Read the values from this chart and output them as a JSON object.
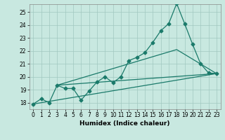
{
  "xlabel": "Humidex (Indice chaleur)",
  "bg_color": "#c8e8e0",
  "line_color": "#1a7a6a",
  "grid_color": "#a0c8c0",
  "xlim": [
    -0.5,
    23.5
  ],
  "ylim": [
    17.5,
    25.6
  ],
  "yticks": [
    18,
    19,
    20,
    21,
    22,
    23,
    24,
    25
  ],
  "xticks": [
    0,
    1,
    2,
    3,
    4,
    5,
    6,
    7,
    8,
    9,
    10,
    11,
    12,
    13,
    14,
    15,
    16,
    17,
    18,
    19,
    20,
    21,
    22,
    23
  ],
  "line1_x": [
    0,
    1,
    2,
    3,
    4,
    5,
    6,
    7,
    8,
    9,
    10,
    11,
    12,
    13,
    14,
    15,
    16,
    17,
    18,
    19,
    20,
    21,
    22,
    23
  ],
  "line1_y": [
    17.9,
    18.3,
    18.0,
    19.35,
    19.1,
    19.1,
    18.2,
    18.9,
    19.6,
    20.0,
    19.55,
    20.0,
    21.25,
    21.5,
    21.85,
    22.65,
    23.55,
    24.1,
    25.65,
    24.1,
    22.5,
    21.0,
    20.3,
    20.25
  ],
  "line2_x": [
    0,
    23
  ],
  "line2_y": [
    17.9,
    20.25
  ],
  "line3_x": [
    3,
    23
  ],
  "line3_y": [
    19.35,
    20.25
  ],
  "line4_x": [
    3,
    18,
    23
  ],
  "line4_y": [
    19.35,
    22.1,
    20.25
  ],
  "marker_size": 2.5,
  "linewidth": 0.9,
  "tick_fontsize": 5.5,
  "xlabel_fontsize": 6.5
}
